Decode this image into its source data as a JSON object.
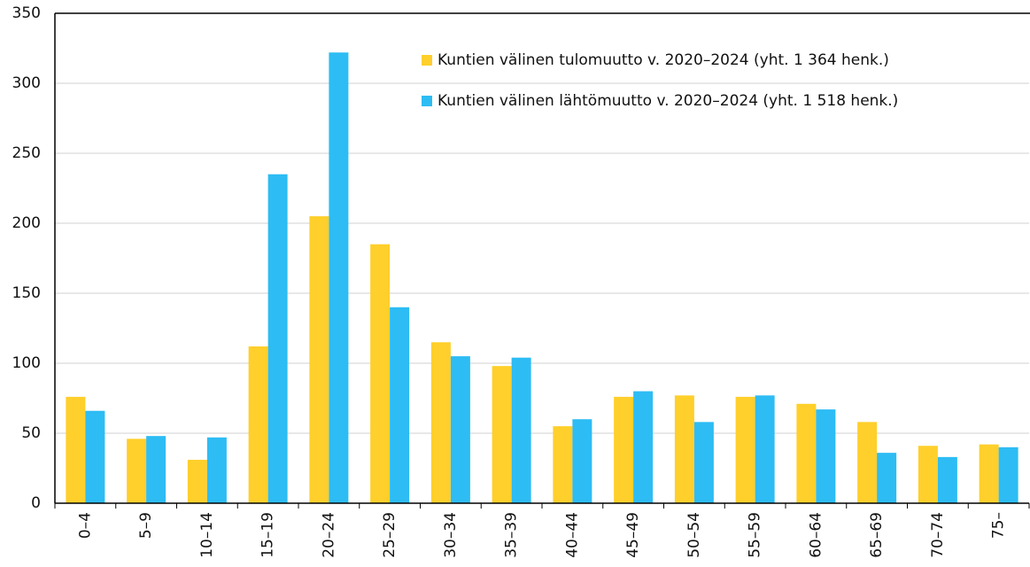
{
  "chart_data": {
    "type": "bar",
    "categories": [
      "0–4",
      "5–9",
      "10–14",
      "15–19",
      "20–24",
      "25–29",
      "30–34",
      "35–39",
      "40–44",
      "45–49",
      "50–54",
      "55–59",
      "60–64",
      "65–69",
      "70–74",
      "75–"
    ],
    "series": [
      {
        "name": "Kuntien välinen tulomuutto v. 2020–2024 (yht. 1 364 henk.)",
        "color": "#ffcf2b",
        "values": [
          76,
          46,
          31,
          112,
          205,
          185,
          115,
          98,
          55,
          76,
          77,
          76,
          71,
          58,
          41,
          42
        ]
      },
      {
        "name": "Kuntien välinen lähtömuutto v. 2020–2024 (yht. 1 518 henk.)",
        "color": "#2dbcf4",
        "values": [
          66,
          48,
          47,
          235,
          322,
          140,
          105,
          104,
          60,
          80,
          58,
          77,
          67,
          36,
          33,
          40
        ]
      }
    ],
    "ylim": [
      0,
      350
    ],
    "yticks": [
      0,
      50,
      100,
      150,
      200,
      250,
      300,
      350
    ],
    "grid": true
  }
}
